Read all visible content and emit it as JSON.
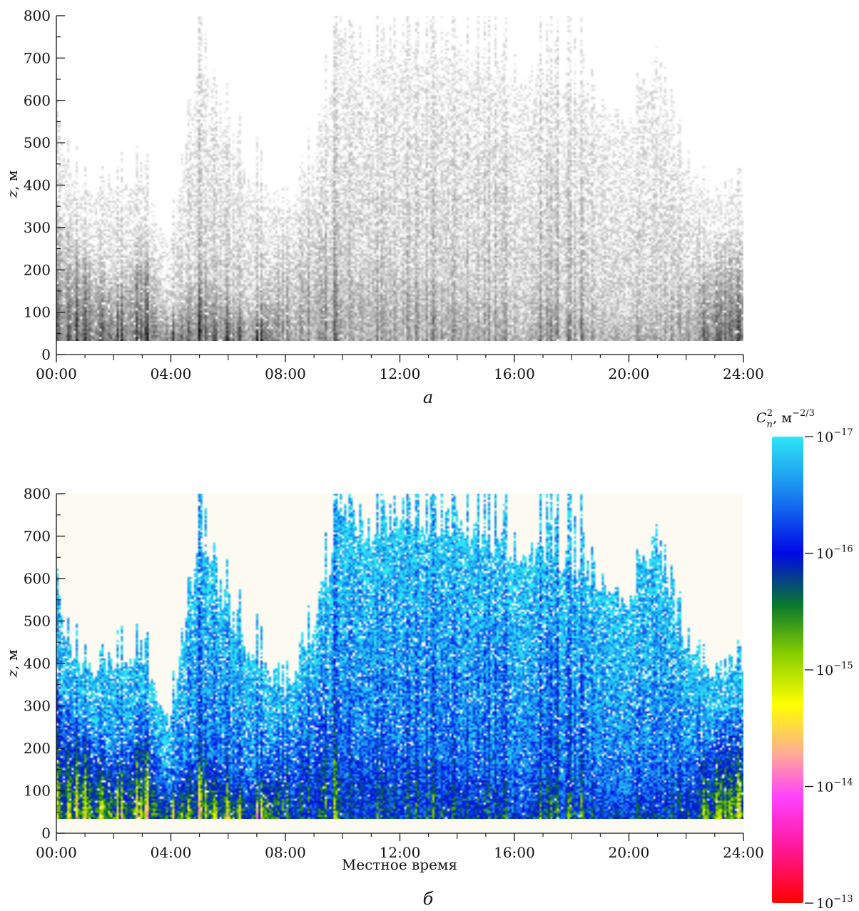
{
  "chart_data": [
    {
      "panel": "a",
      "type": "heatmap",
      "colormap": "grayscale",
      "caption": "а",
      "title": "",
      "xlabel": "",
      "ylabel": "z, м",
      "ylabel_var": "z",
      "ylabel_unit": ", м",
      "x_ticks": [
        "00:00",
        "04:00",
        "08:00",
        "12:00",
        "16:00",
        "20:00",
        "24:00"
      ],
      "y_ticks": [
        "0",
        "100",
        "200",
        "300",
        "400",
        "500",
        "600",
        "700",
        "800"
      ],
      "xlim_hours": [
        0,
        24
      ],
      "ylim": [
        0,
        800
      ],
      "data_z_range": [
        40,
        800
      ],
      "z": "log10 Cn2, same data as panel б"
    },
    {
      "panel": "б",
      "type": "heatmap",
      "colormap": "rainbow",
      "caption": "б",
      "title": "",
      "xlabel": "Местное время",
      "ylabel": "z, м",
      "ylabel_var": "z",
      "ylabel_unit": ", м",
      "x_ticks": [
        "00:00",
        "04:00",
        "08:00",
        "12:00",
        "16:00",
        "20:00",
        "24:00"
      ],
      "y_ticks": [
        "0",
        "100",
        "200",
        "300",
        "400",
        "500",
        "600",
        "700",
        "800"
      ],
      "xlim_hours": [
        0,
        24
      ],
      "ylim": [
        0,
        800
      ],
      "data_z_range": [
        40,
        800
      ],
      "colorbar": {
        "label_var": "C",
        "label_sub": "n",
        "label_sup": "2",
        "label_unit": ", м",
        "label_unit_exp": "−2/3",
        "ticks": [
          {
            "base": "10",
            "exp": "−17",
            "log": -17
          },
          {
            "base": "10",
            "exp": "−16",
            "log": -16
          },
          {
            "base": "10",
            "exp": "−15",
            "log": -15
          },
          {
            "base": "10",
            "exp": "−14",
            "log": -14
          },
          {
            "base": "10",
            "exp": "−13",
            "log": -13
          }
        ],
        "range_log10": [
          -17,
          -13
        ],
        "stops": [
          {
            "log": -17.0,
            "color": "#2ee6f5"
          },
          {
            "log": -16.55,
            "color": "#1a8cf0"
          },
          {
            "log": -16.0,
            "color": "#0008e6"
          },
          {
            "log": -15.55,
            "color": "#0a7a2a"
          },
          {
            "log": -15.15,
            "color": "#84cc00"
          },
          {
            "log": -14.7,
            "color": "#ffff00"
          },
          {
            "log": -14.3,
            "color": "#ffb090"
          },
          {
            "log": -13.9,
            "color": "#ff40ff"
          },
          {
            "log": -13.5,
            "color": "#ff1aa0"
          },
          {
            "log": -13.0,
            "color": "#ff0000"
          }
        ]
      },
      "background_color": "#fdfaf2",
      "dominant_color": "#1ec8ff",
      "peak_color": "#8b1a82",
      "event_profile": [
        {
          "t": 0.0,
          "top": 580,
          "core": 360
        },
        {
          "t": 0.5,
          "top": 420,
          "core": 320
        },
        {
          "t": 1.0,
          "top": 380,
          "core": 300
        },
        {
          "t": 2.0,
          "top": 400,
          "core": 200
        },
        {
          "t": 3.0,
          "top": 420,
          "core": 320
        },
        {
          "t": 4.0,
          "top": 260,
          "core": 120
        },
        {
          "t": 5.0,
          "top": 720,
          "core": 220
        },
        {
          "t": 6.0,
          "top": 520,
          "core": 160
        },
        {
          "t": 7.0,
          "top": 400,
          "core": 120
        },
        {
          "t": 8.0,
          "top": 330,
          "core": 300
        },
        {
          "t": 9.2,
          "top": 520,
          "core": 400
        },
        {
          "t": 10.0,
          "top": 780,
          "core": 250
        },
        {
          "t": 11.0,
          "top": 700,
          "core": 250
        },
        {
          "t": 12.0,
          "top": 760,
          "core": 250
        },
        {
          "t": 14.0,
          "top": 720,
          "core": 160
        },
        {
          "t": 16.0,
          "top": 670,
          "core": 150
        },
        {
          "t": 18.0,
          "top": 640,
          "core": 150
        },
        {
          "t": 20.0,
          "top": 560,
          "core": 120
        },
        {
          "t": 21.0,
          "top": 700,
          "core": 160
        },
        {
          "t": 22.0,
          "top": 440,
          "core": 200
        },
        {
          "t": 23.0,
          "top": 380,
          "core": 300
        },
        {
          "t": 24.0,
          "top": 400,
          "core": 300
        }
      ]
    }
  ]
}
